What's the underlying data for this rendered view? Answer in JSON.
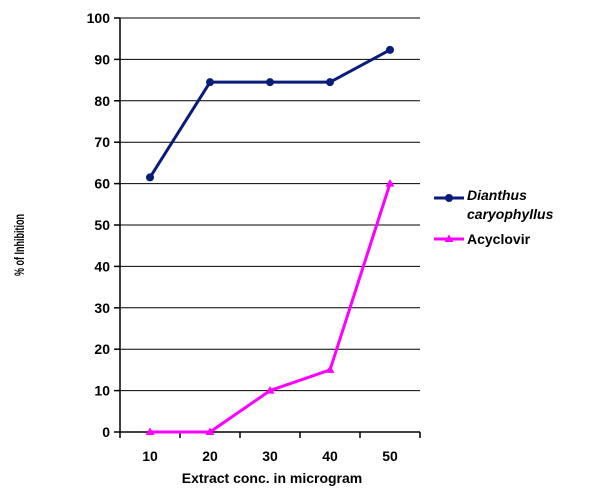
{
  "chart_data": {
    "type": "line",
    "title": "",
    "xlabel": "Extract conc. in microgram",
    "ylabel": "% of Inhibition",
    "categories": [
      "10",
      "20",
      "30",
      "40",
      "50"
    ],
    "x": [
      10,
      20,
      30,
      40,
      50
    ],
    "ylim": [
      0,
      100
    ],
    "yticks": [
      "0",
      "10",
      "20",
      "30",
      "40",
      "50",
      "60",
      "70",
      "80",
      "90",
      "100"
    ],
    "grid": "horizontal",
    "legend_position": "right",
    "series": [
      {
        "name_line1": "Dianthus",
        "name_line2": "caryophyllus",
        "name": "Dianthus caryophyllus",
        "values": [
          61.5,
          84.5,
          84.5,
          84.5,
          92.3
        ],
        "color": "#0a1c7a",
        "marker": "circle"
      },
      {
        "name": "Acyclovir",
        "values": [
          0,
          0,
          10,
          15,
          60
        ],
        "color": "#ff00ff",
        "marker": "triangle"
      }
    ]
  }
}
